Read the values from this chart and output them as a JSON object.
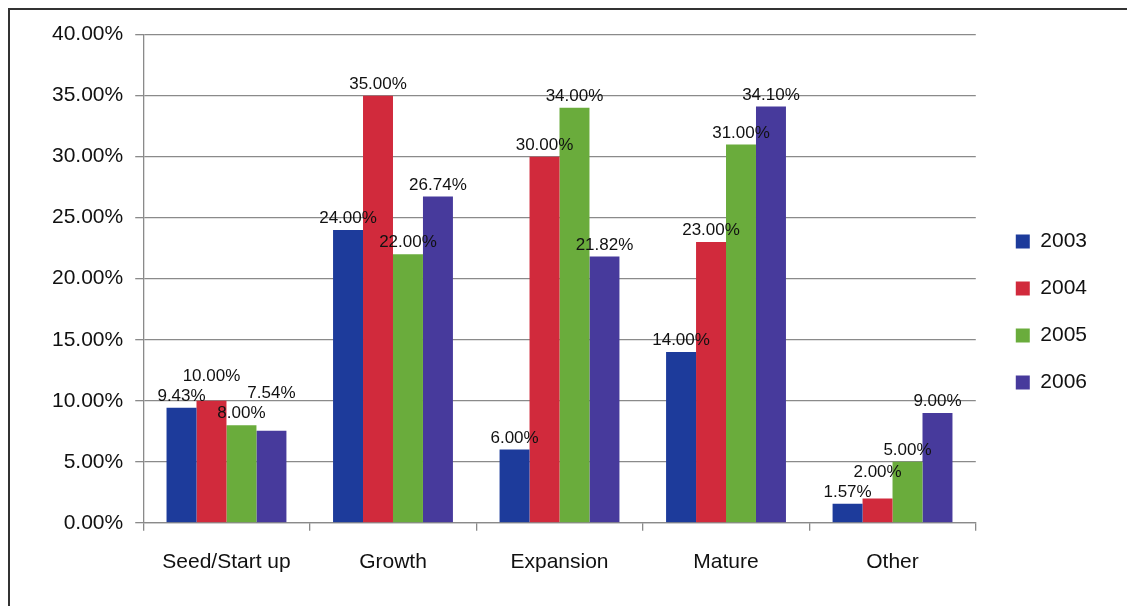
{
  "chart_data": {
    "type": "bar",
    "categories": [
      "Seed/Start up",
      "Growth",
      "Expansion",
      "Mature",
      "Other"
    ],
    "series": [
      {
        "name": "2003",
        "color": "#1d3b9b",
        "values": [
          9.43,
          24,
          6,
          14,
          1.57
        ],
        "value_labels": [
          "9.43%",
          "24.00%",
          "6.00%",
          "14.00%",
          "1.57%"
        ]
      },
      {
        "name": "2004",
        "color": "#d12a3c",
        "values": [
          10,
          35,
          30,
          23,
          2
        ],
        "value_labels": [
          "10.00%",
          "35.00%",
          "30.00%",
          "23.00%",
          "2.00%"
        ]
      },
      {
        "name": "2005",
        "color": "#6aac3c",
        "values": [
          8,
          22,
          34,
          31,
          5
        ],
        "value_labels": [
          "8.00%",
          "22.00%",
          "34.00%",
          "31.00%",
          "5.00%"
        ]
      },
      {
        "name": "2006",
        "color": "#473a9c",
        "values": [
          7.54,
          26.74,
          21.82,
          34.1,
          9
        ],
        "value_labels": [
          "7.54%",
          "26.74%",
          "21.82%",
          "34.10%",
          "9.00%"
        ]
      }
    ],
    "ylim": [
      0,
      40
    ],
    "yticks": [
      {
        "value": 0,
        "label": "0.00%"
      },
      {
        "value": 5,
        "label": "5.00%"
      },
      {
        "value": 10,
        "label": "10.00%"
      },
      {
        "value": 15,
        "label": "15.00%"
      },
      {
        "value": 20,
        "label": "20.00%"
      },
      {
        "value": 25,
        "label": "25.00%"
      },
      {
        "value": 30,
        "label": "30.00%"
      },
      {
        "value": 35,
        "label": "35.00%"
      },
      {
        "value": 40,
        "label": "40.00%"
      }
    ],
    "grid": "y",
    "legend": "right"
  }
}
